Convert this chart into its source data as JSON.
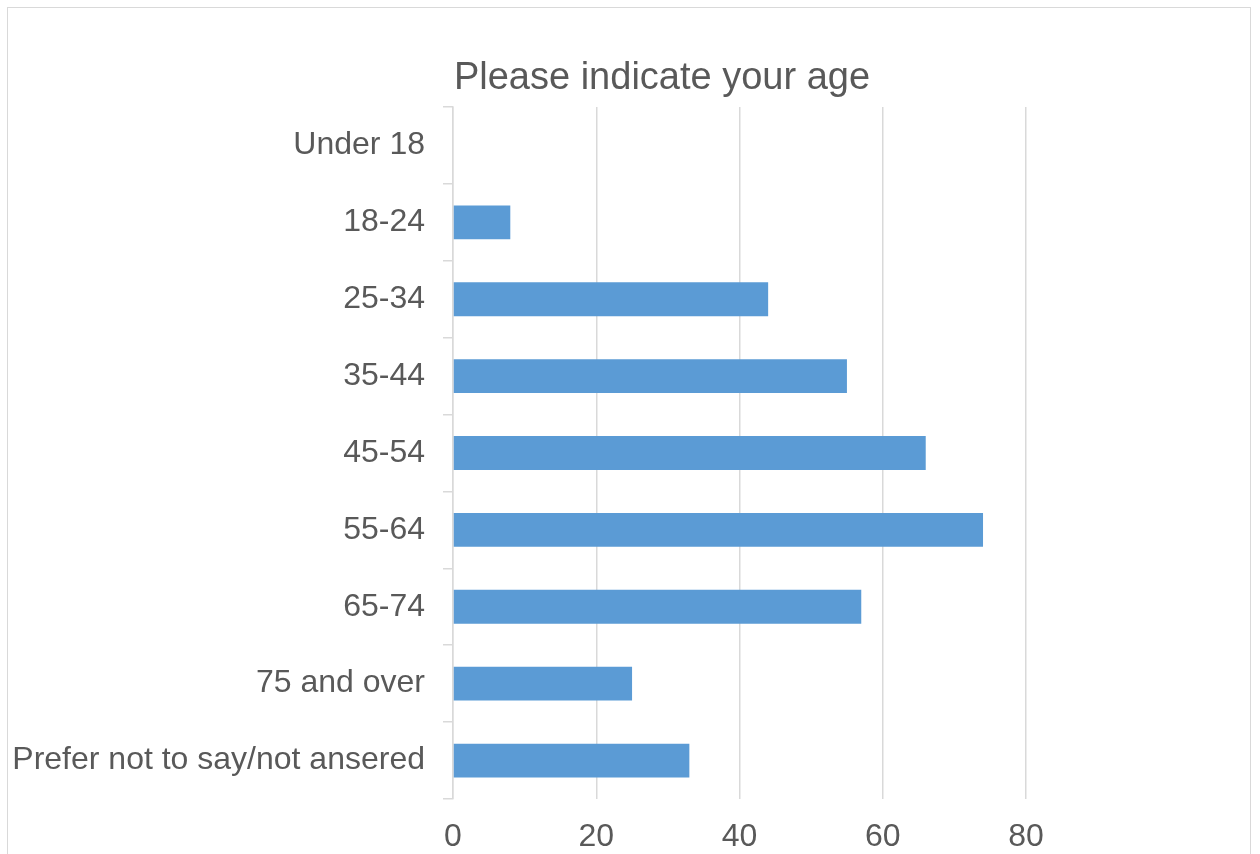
{
  "chart_data": {
    "type": "bar",
    "orientation": "horizontal",
    "title": "Please indicate your age",
    "categories": [
      "Under 18",
      "18-24",
      "25-34",
      "35-44",
      "45-54",
      "55-64",
      "65-74",
      "75 and over",
      "Prefer not to say/not ansered"
    ],
    "values": [
      0,
      8,
      44,
      55,
      66,
      74,
      57,
      25,
      33
    ],
    "color": "#5b9bd5",
    "xlim": [
      0,
      80
    ],
    "xticks": [
      0,
      20,
      40,
      60,
      80
    ],
    "grid": "x"
  }
}
